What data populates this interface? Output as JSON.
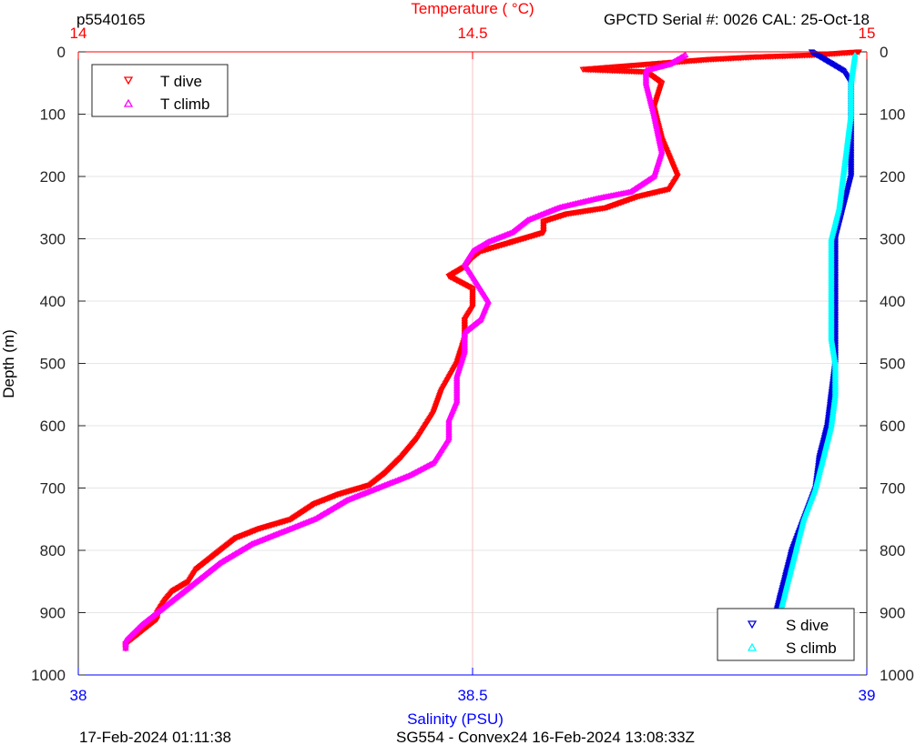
{
  "header": {
    "profile_id": "p5540165",
    "serial_info": "GPCTD Serial #: 0026 CAL: 25-Oct-18"
  },
  "footer": {
    "timestamp": "17-Feb-2024 01:11:38",
    "mission": "SG554 - Convex24 16-Feb-2024 13:08:33Z"
  },
  "colors": {
    "t_dive": "#ff0000",
    "t_climb": "#ff00ff",
    "s_dive": "#0000dd",
    "s_climb": "#00ffff",
    "temp_axis": "#ff0000",
    "sal_axis": "#0000ff",
    "grid": "#e6e6e6"
  },
  "chart_data": {
    "type": "scatter",
    "grid": true,
    "y_axis": {
      "label": "Depth (m)",
      "range": [
        0,
        1000
      ],
      "reversed": true,
      "ticks": [
        "0",
        "100",
        "200",
        "300",
        "400",
        "500",
        "600",
        "700",
        "800",
        "900",
        "1000"
      ],
      "tick_values": [
        0,
        100,
        200,
        300,
        400,
        500,
        600,
        700,
        800,
        900,
        1000
      ]
    },
    "temperature_axis": {
      "label": "Temperature (   °C)",
      "position": "top",
      "range": [
        14,
        15
      ],
      "ticks": [
        "14",
        "14.5",
        "15"
      ],
      "tick_values": [
        14,
        14.5,
        15
      ]
    },
    "salinity_axis": {
      "label": "Salinity (PSU)",
      "position": "bottom",
      "range": [
        38,
        39
      ],
      "ticks": [
        "38",
        "38.5",
        "39"
      ],
      "tick_values": [
        38,
        38.5,
        39
      ]
    },
    "legends": [
      {
        "placement": "top-left",
        "entries": [
          {
            "label": "T dive",
            "series": "t_dive"
          },
          {
            "label": "T climb",
            "series": "t_climb"
          }
        ]
      },
      {
        "placement": "bottom-right",
        "entries": [
          {
            "label": "S dive",
            "series": "s_dive"
          },
          {
            "label": "S climb",
            "series": "s_climb"
          }
        ]
      }
    ],
    "series": [
      {
        "name": "T dive",
        "key": "t_dive",
        "axis": "temperature",
        "marker": "triangle-down",
        "points": [
          [
            14.99,
            0
          ],
          [
            14.93,
            5
          ],
          [
            14.86,
            8
          ],
          [
            14.8,
            12
          ],
          [
            14.72,
            20
          ],
          [
            14.64,
            28
          ],
          [
            14.72,
            32
          ],
          [
            14.74,
            50
          ],
          [
            14.73,
            90
          ],
          [
            14.74,
            140
          ],
          [
            14.75,
            170
          ],
          [
            14.76,
            200
          ],
          [
            14.75,
            220
          ],
          [
            14.71,
            232
          ],
          [
            14.67,
            250
          ],
          [
            14.62,
            260
          ],
          [
            14.59,
            272
          ],
          [
            14.59,
            290
          ],
          [
            14.55,
            305
          ],
          [
            14.51,
            320
          ],
          [
            14.5,
            330
          ],
          [
            14.49,
            345
          ],
          [
            14.47,
            360
          ],
          [
            14.5,
            380
          ],
          [
            14.5,
            395
          ],
          [
            14.5,
            410
          ],
          [
            14.49,
            430
          ],
          [
            14.49,
            460
          ],
          [
            14.48,
            500
          ],
          [
            14.46,
            545
          ],
          [
            14.45,
            580
          ],
          [
            14.43,
            620
          ],
          [
            14.41,
            650
          ],
          [
            14.39,
            675
          ],
          [
            14.37,
            695
          ],
          [
            14.33,
            710
          ],
          [
            14.3,
            725
          ],
          [
            14.27,
            750
          ],
          [
            14.23,
            765
          ],
          [
            14.2,
            780
          ],
          [
            14.18,
            800
          ],
          [
            14.15,
            830
          ],
          [
            14.14,
            850
          ],
          [
            14.12,
            865
          ],
          [
            14.11,
            880
          ],
          [
            14.1,
            900
          ],
          [
            14.1,
            910
          ],
          [
            14.08,
            930
          ],
          [
            14.06,
            950
          ],
          [
            14.06,
            960
          ]
        ]
      },
      {
        "name": "T climb",
        "key": "t_climb",
        "axis": "temperature",
        "marker": "triangle-up",
        "points": [
          [
            14.77,
            5
          ],
          [
            14.75,
            20
          ],
          [
            14.72,
            30
          ],
          [
            14.72,
            50
          ],
          [
            14.73,
            100
          ],
          [
            14.74,
            160
          ],
          [
            14.73,
            200
          ],
          [
            14.7,
            225
          ],
          [
            14.66,
            235
          ],
          [
            14.61,
            250
          ],
          [
            14.57,
            270
          ],
          [
            14.55,
            290
          ],
          [
            14.52,
            305
          ],
          [
            14.5,
            320
          ],
          [
            14.49,
            340
          ],
          [
            14.5,
            360
          ],
          [
            14.51,
            380
          ],
          [
            14.52,
            400
          ],
          [
            14.51,
            430
          ],
          [
            14.49,
            450
          ],
          [
            14.49,
            480
          ],
          [
            14.48,
            520
          ],
          [
            14.48,
            560
          ],
          [
            14.47,
            590
          ],
          [
            14.47,
            620
          ],
          [
            14.45,
            660
          ],
          [
            14.42,
            680
          ],
          [
            14.38,
            700
          ],
          [
            14.34,
            720
          ],
          [
            14.3,
            750
          ],
          [
            14.26,
            770
          ],
          [
            14.22,
            790
          ],
          [
            14.18,
            820
          ],
          [
            14.16,
            840
          ],
          [
            14.13,
            870
          ],
          [
            14.11,
            890
          ],
          [
            14.08,
            920
          ],
          [
            14.06,
            945
          ],
          [
            14.06,
            960
          ]
        ]
      },
      {
        "name": "S dive",
        "key": "s_dive",
        "axis": "salinity",
        "marker": "triangle-down",
        "points": [
          [
            38.93,
            0
          ],
          [
            38.95,
            15
          ],
          [
            38.97,
            30
          ],
          [
            38.98,
            50
          ],
          [
            38.98,
            100
          ],
          [
            38.98,
            150
          ],
          [
            38.98,
            200
          ],
          [
            38.97,
            250
          ],
          [
            38.96,
            300
          ],
          [
            38.96,
            350
          ],
          [
            38.96,
            400
          ],
          [
            38.96,
            450
          ],
          [
            38.96,
            500
          ],
          [
            38.955,
            550
          ],
          [
            38.95,
            600
          ],
          [
            38.94,
            650
          ],
          [
            38.935,
            700
          ],
          [
            38.92,
            750
          ],
          [
            38.905,
            800
          ],
          [
            38.895,
            850
          ],
          [
            38.885,
            900
          ],
          [
            38.88,
            950
          ],
          [
            38.88,
            960
          ]
        ]
      },
      {
        "name": "S climb",
        "key": "s_climb",
        "axis": "salinity",
        "marker": "triangle-up",
        "points": [
          [
            38.985,
            5
          ],
          [
            38.98,
            50
          ],
          [
            38.98,
            100
          ],
          [
            38.975,
            150
          ],
          [
            38.97,
            200
          ],
          [
            38.965,
            250
          ],
          [
            38.955,
            300
          ],
          [
            38.955,
            350
          ],
          [
            38.955,
            400
          ],
          [
            38.955,
            460
          ],
          [
            38.96,
            500
          ],
          [
            38.96,
            550
          ],
          [
            38.955,
            600
          ],
          [
            38.945,
            650
          ],
          [
            38.935,
            700
          ],
          [
            38.92,
            750
          ],
          [
            38.91,
            800
          ],
          [
            38.9,
            850
          ],
          [
            38.89,
            900
          ],
          [
            38.88,
            950
          ],
          [
            38.88,
            965
          ]
        ]
      }
    ]
  }
}
